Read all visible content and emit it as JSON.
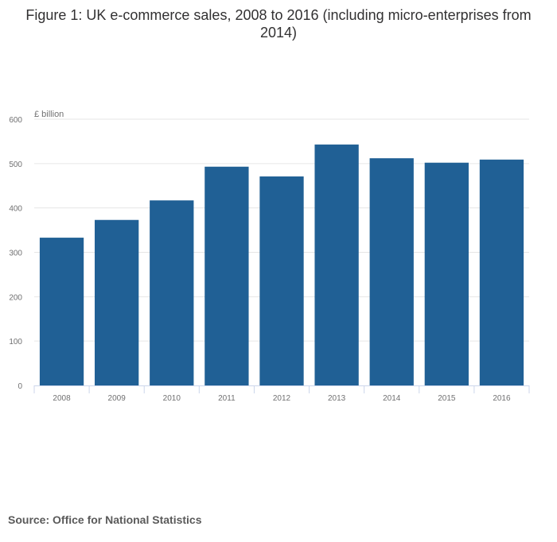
{
  "chart_data": {
    "type": "bar",
    "title": "Figure 1: UK e-commerce sales, 2008 to 2016 (including micro-enterprises from 2014)",
    "ylabel": "£ billion",
    "xlabel": "",
    "categories": [
      "2008",
      "2009",
      "2010",
      "2011",
      "2012",
      "2013",
      "2014",
      "2015",
      "2016"
    ],
    "values": [
      333,
      373,
      417,
      493,
      471,
      543,
      512,
      502,
      509
    ],
    "ylim": [
      0,
      600
    ],
    "yticks": [
      "0",
      "100",
      "200",
      "300",
      "400",
      "500",
      "600"
    ],
    "grid": true,
    "bar_color": "#206095",
    "source": "Source: Office for National Statistics"
  }
}
